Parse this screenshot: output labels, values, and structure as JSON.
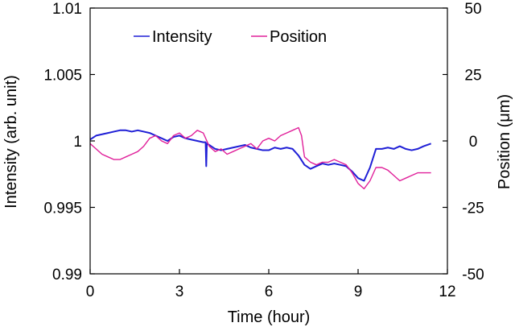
{
  "chart_data": {
    "type": "line",
    "xlabel": "Time (hour)",
    "ylabel_left": "Intensity (arb. unit)",
    "ylabel_right": "Position (μm)",
    "xlim": [
      0,
      12
    ],
    "ylim_left": [
      0.99,
      1.01
    ],
    "ylim_right": [
      -50,
      50
    ],
    "x_ticks": [
      "0",
      "3",
      "6",
      "9",
      "12"
    ],
    "y_left_ticks": [
      "0.99",
      "0.995",
      "1",
      "1.005",
      "1.01"
    ],
    "y_right_ticks": [
      "-50",
      "-25",
      "0",
      "25",
      "50"
    ],
    "grid": false,
    "legend_position": "top",
    "series": [
      {
        "name": "Intensity",
        "axis": "left",
        "color": "#1f1fd6",
        "x": [
          0,
          0.2,
          0.4,
          0.6,
          0.8,
          1.0,
          1.2,
          1.4,
          1.6,
          1.8,
          2.0,
          2.2,
          2.4,
          2.6,
          2.8,
          3.0,
          3.2,
          3.4,
          3.6,
          3.8,
          3.88,
          3.9,
          3.92,
          4.0,
          4.2,
          4.4,
          4.6,
          4.8,
          5.0,
          5.2,
          5.4,
          5.6,
          5.8,
          6.0,
          6.2,
          6.4,
          6.6,
          6.8,
          7.0,
          7.2,
          7.4,
          7.6,
          7.8,
          8.0,
          8.2,
          8.4,
          8.6,
          8.8,
          9.0,
          9.2,
          9.4,
          9.6,
          9.8,
          10.0,
          10.2,
          10.4,
          10.6,
          10.8,
          11.0,
          11.2,
          11.45
        ],
        "y": [
          1.0001,
          1.0004,
          1.0005,
          1.0006,
          1.0007,
          1.0008,
          1.0008,
          1.0007,
          1.0008,
          1.0007,
          1.0006,
          1.0004,
          1.0002,
          1.0,
          1.0003,
          1.0004,
          1.0002,
          1.0001,
          1.0,
          0.9999,
          0.9999,
          0.9981,
          0.9998,
          0.9997,
          0.9994,
          0.9993,
          0.9994,
          0.9995,
          0.9996,
          0.9997,
          0.9995,
          0.9994,
          0.9993,
          0.9993,
          0.9995,
          0.9994,
          0.9995,
          0.9994,
          0.9989,
          0.9982,
          0.9979,
          0.9981,
          0.9983,
          0.9982,
          0.9983,
          0.9982,
          0.9981,
          0.9977,
          0.9972,
          0.997,
          0.998,
          0.9994,
          0.9994,
          0.9995,
          0.9994,
          0.9996,
          0.9994,
          0.9993,
          0.9994,
          0.9996,
          0.9998
        ]
      },
      {
        "name": "Position",
        "axis": "right",
        "color": "#e0209a",
        "x": [
          0,
          0.2,
          0.4,
          0.6,
          0.8,
          1.0,
          1.2,
          1.4,
          1.6,
          1.8,
          2.0,
          2.2,
          2.4,
          2.6,
          2.8,
          3.0,
          3.2,
          3.4,
          3.6,
          3.8,
          4.0,
          4.2,
          4.4,
          4.6,
          4.8,
          5.0,
          5.2,
          5.4,
          5.6,
          5.8,
          6.0,
          6.2,
          6.4,
          6.6,
          6.8,
          7.0,
          7.1,
          7.2,
          7.4,
          7.6,
          7.8,
          8.0,
          8.2,
          8.4,
          8.6,
          8.8,
          9.0,
          9.2,
          9.4,
          9.6,
          9.8,
          10.0,
          10.2,
          10.4,
          10.6,
          10.8,
          11.0,
          11.2,
          11.45
        ],
        "y": [
          -1,
          -3,
          -5,
          -6,
          -7,
          -7,
          -6,
          -5,
          -4,
          -2,
          1,
          2,
          0,
          -1,
          2,
          3,
          1,
          2,
          4,
          3,
          -2,
          -4,
          -3,
          -5,
          -4,
          -3,
          -2,
          -1,
          -3,
          0,
          1,
          0,
          2,
          3,
          4,
          5,
          2,
          -6,
          -8,
          -9,
          -8,
          -8,
          -7,
          -8,
          -9,
          -12,
          -16,
          -18,
          -15,
          -10,
          -10,
          -11,
          -13,
          -15,
          -14,
          -13,
          -12,
          -12,
          -12
        ]
      }
    ]
  }
}
